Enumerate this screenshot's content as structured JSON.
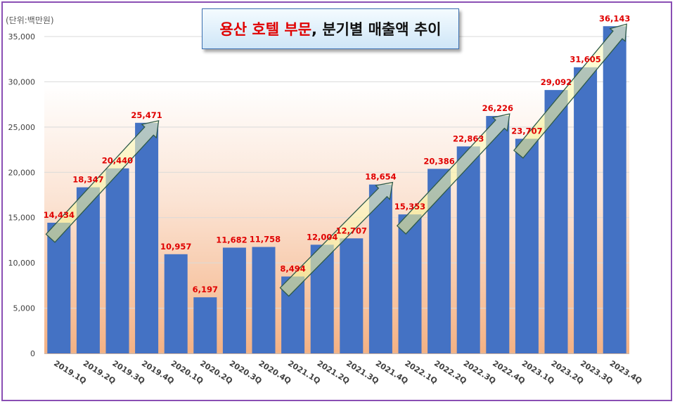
{
  "chart_data": {
    "type": "bar",
    "title_highlight": "용산 호텔 부문",
    "title_rest": ", 분기별 매출액 추이",
    "unit_label": "(단위:백만원)",
    "categories": [
      "2019.1Q",
      "2019.2Q",
      "2019.3Q",
      "2019.4Q",
      "2020.1Q",
      "2020.2Q",
      "2020.3Q",
      "2020.4Q",
      "2021.1Q",
      "2021.2Q",
      "2021.3Q",
      "2021.4Q",
      "2022.1Q",
      "2022.2Q",
      "2022.3Q",
      "2022.4Q",
      "2023.1Q",
      "2023.2Q",
      "2023.3Q",
      "2023.4Q"
    ],
    "values": [
      14434,
      18347,
      20440,
      25471,
      10957,
      6197,
      11682,
      11758,
      8494,
      12004,
      12707,
      18654,
      15353,
      20386,
      22863,
      26226,
      23707,
      29092,
      31605,
      36143
    ],
    "data_labels": [
      "14,434",
      "18,347",
      "20,440",
      "25,471",
      "10,957",
      "6,197",
      "11,682",
      "11,758",
      "8,494",
      "12,004",
      "12,707",
      "18,654",
      "15,353",
      "20,386",
      "22,863",
      "26,226",
      "23,707",
      "29,092",
      "31,605",
      "36,143"
    ],
    "y_ticks": [
      "0",
      "5,000",
      "10,000",
      "15,000",
      "20,000",
      "25,000",
      "30,000",
      "35,000"
    ],
    "ylim": [
      0,
      37500
    ],
    "grid": true,
    "bar_color": "#4472c4",
    "label_color": "#e00000",
    "trend_arrows": [
      {
        "from": 0,
        "to": 3
      },
      {
        "from": 8,
        "to": 11
      },
      {
        "from": 12,
        "to": 15
      },
      {
        "from": 16,
        "to": 19
      }
    ]
  }
}
